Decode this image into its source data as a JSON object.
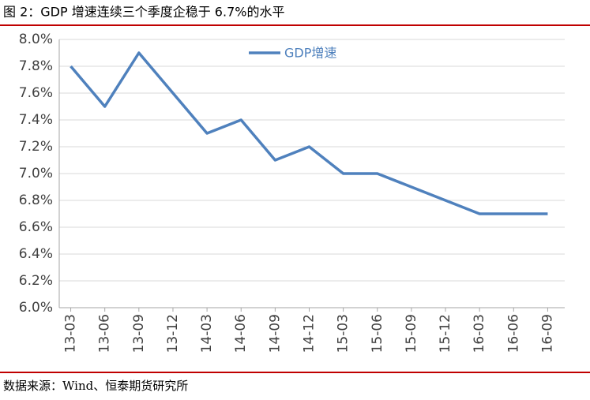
{
  "chart_data": {
    "type": "line",
    "title": "图 2：GDP 增速连续三个季度企稳于 6.7%的水平",
    "source": "数据来源：Wind、恒泰期货研究所",
    "categories": [
      "13-03",
      "13-06",
      "13-09",
      "13-12",
      "14-03",
      "14-06",
      "14-09",
      "14-12",
      "15-03",
      "15-06",
      "15-09",
      "15-12",
      "16-03",
      "16-06",
      "16-09"
    ],
    "series": [
      {
        "name": "GDP增速",
        "color": "#4f81bd",
        "values": [
          7.8,
          7.5,
          7.9,
          7.6,
          7.3,
          7.4,
          7.1,
          7.2,
          7.0,
          7.0,
          6.9,
          6.8,
          6.7,
          6.7,
          6.7
        ]
      }
    ],
    "ylim": [
      6.0,
      8.0
    ],
    "yticks": [
      {
        "value": 6.0,
        "label": "6.0%"
      },
      {
        "value": 6.2,
        "label": "6.2%"
      },
      {
        "value": 6.4,
        "label": "6.4%"
      },
      {
        "value": 6.6,
        "label": "6.6%"
      },
      {
        "value": 6.8,
        "label": "6.8%"
      },
      {
        "value": 7.0,
        "label": "7.0%"
      },
      {
        "value": 7.2,
        "label": "7.2%"
      },
      {
        "value": 7.4,
        "label": "7.4%"
      },
      {
        "value": 7.6,
        "label": "7.6%"
      },
      {
        "value": 7.8,
        "label": "7.8%"
      },
      {
        "value": 8.0,
        "label": "8.0%"
      }
    ],
    "grid": true,
    "legend": "top"
  }
}
